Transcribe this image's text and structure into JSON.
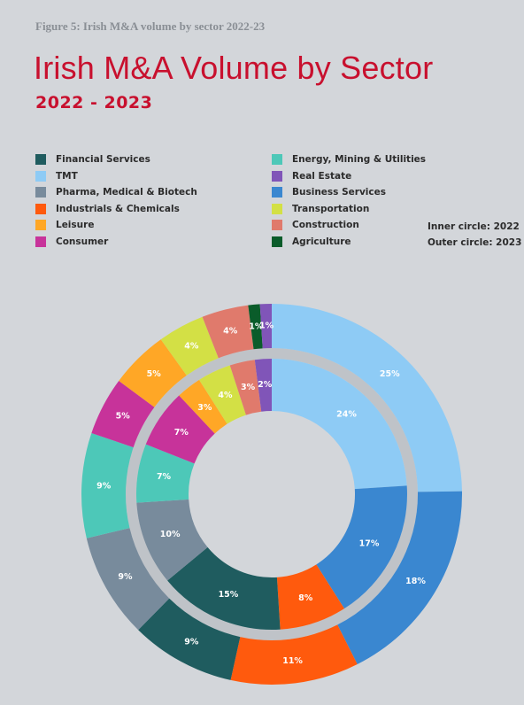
{
  "figure_caption": "Figure 5: Irish M&A volume by sector 2022-23",
  "chart_title": "Irish M&A Volume by Sector",
  "chart_subtitle": "2022 - 2023",
  "circle_notes": {
    "inner": "Inner circle: 2022",
    "outer": "Outer circle: 2023"
  },
  "colors": {
    "background": "#d3d6da",
    "title": "#c8102e"
  },
  "chart_data": {
    "type": "donut",
    "title": "Irish M&A Volume by Sector",
    "subtitle": "2022 - 2023",
    "legend_position": "top",
    "categories": [
      {
        "key": "tmt",
        "name": "TMT",
        "color": "#8ecbf5"
      },
      {
        "key": "business_services",
        "name": "Business Services",
        "color": "#3a87d0"
      },
      {
        "key": "industrials",
        "name": "Industrials & Chemicals",
        "color": "#ff5a0d"
      },
      {
        "key": "financial_services",
        "name": "Financial Services",
        "color": "#1f5c5f"
      },
      {
        "key": "pharma",
        "name": "Pharma, Medical & Biotech",
        "color": "#788b9c"
      },
      {
        "key": "energy",
        "name": "Energy, Mining & Utilities",
        "color": "#4dc8b8"
      },
      {
        "key": "consumer",
        "name": "Consumer",
        "color": "#c7339a"
      },
      {
        "key": "leisure",
        "name": "Leisure",
        "color": "#ffa726"
      },
      {
        "key": "transportation",
        "name": "Transportation",
        "color": "#d3e045"
      },
      {
        "key": "construction",
        "name": "Construction",
        "color": "#e07a6c"
      },
      {
        "key": "agriculture",
        "name": "Agriculture",
        "color": "#0a5c2a"
      },
      {
        "key": "real_estate",
        "name": "Real Estate",
        "color": "#8055b8"
      }
    ],
    "legend_order": [
      "financial_services",
      "tmt",
      "pharma",
      "industrials",
      "leisure",
      "consumer",
      "energy",
      "real_estate",
      "business_services",
      "transportation",
      "construction",
      "agriculture"
    ],
    "series": [
      {
        "ring": "inner",
        "year": "2022",
        "values": [
          24,
          17,
          8,
          15,
          10,
          7,
          7,
          3,
          4,
          3,
          0,
          2
        ]
      },
      {
        "ring": "outer",
        "year": "2023",
        "values": [
          25,
          18,
          11,
          9,
          9,
          9,
          5,
          5,
          4,
          4,
          1,
          1
        ]
      }
    ],
    "unit": "%"
  }
}
